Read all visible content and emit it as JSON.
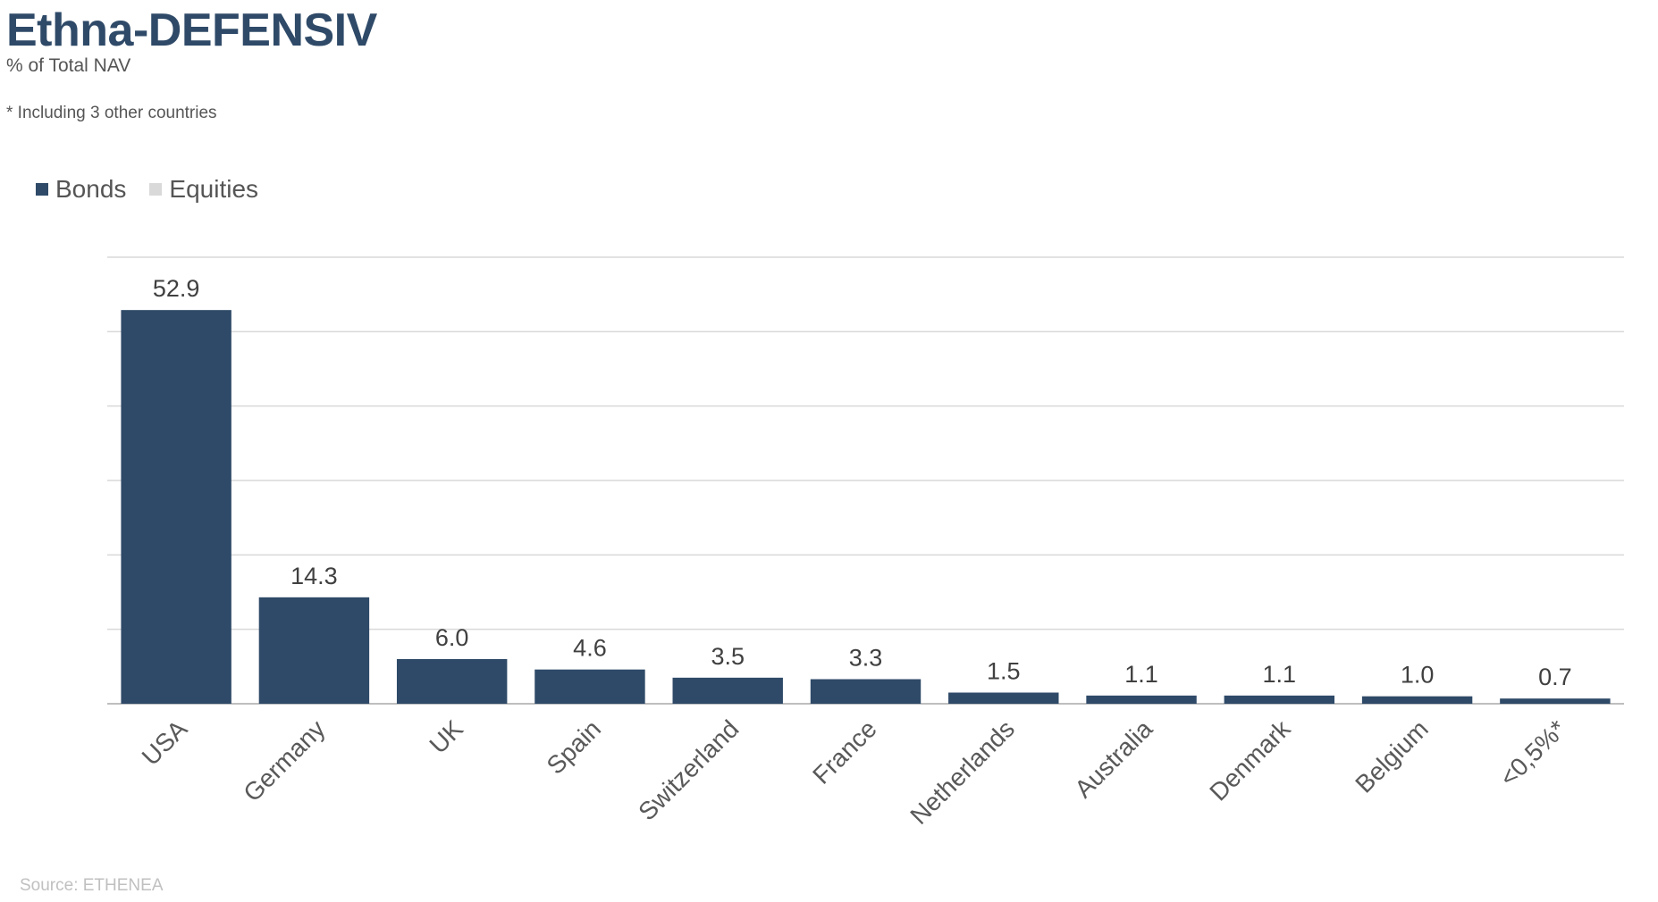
{
  "chart_data": {
    "type": "bar",
    "title": "Ethna-DEFENSIV",
    "subtitle": "% of Total NAV",
    "footnote": "* Including 3 other countries",
    "source": "Source: ETHENEA",
    "categories": [
      "USA",
      "Germany",
      "UK",
      "Spain",
      "Switzerland",
      "France",
      "Netherlands",
      "Australia",
      "Denmark",
      "Belgium",
      "<0,5%*"
    ],
    "series": [
      {
        "name": "Bonds",
        "color": "#2f4a68",
        "values": [
          52.9,
          14.3,
          6.0,
          4.6,
          3.5,
          3.3,
          1.5,
          1.1,
          1.1,
          1.0,
          0.7
        ]
      },
      {
        "name": "Equities",
        "color": "#d9d9d9",
        "values": [
          0,
          0,
          0,
          0,
          0,
          0,
          0,
          0,
          0,
          0,
          0
        ]
      }
    ],
    "data_labels": [
      "52.9",
      "14.3",
      "6.0",
      "4.6",
      "3.5",
      "3.3",
      "1.5",
      "1.1",
      "1.1",
      "1.0",
      "0.7"
    ],
    "ylim": [
      0,
      60
    ],
    "grid": true,
    "legend_position": "top-left"
  }
}
